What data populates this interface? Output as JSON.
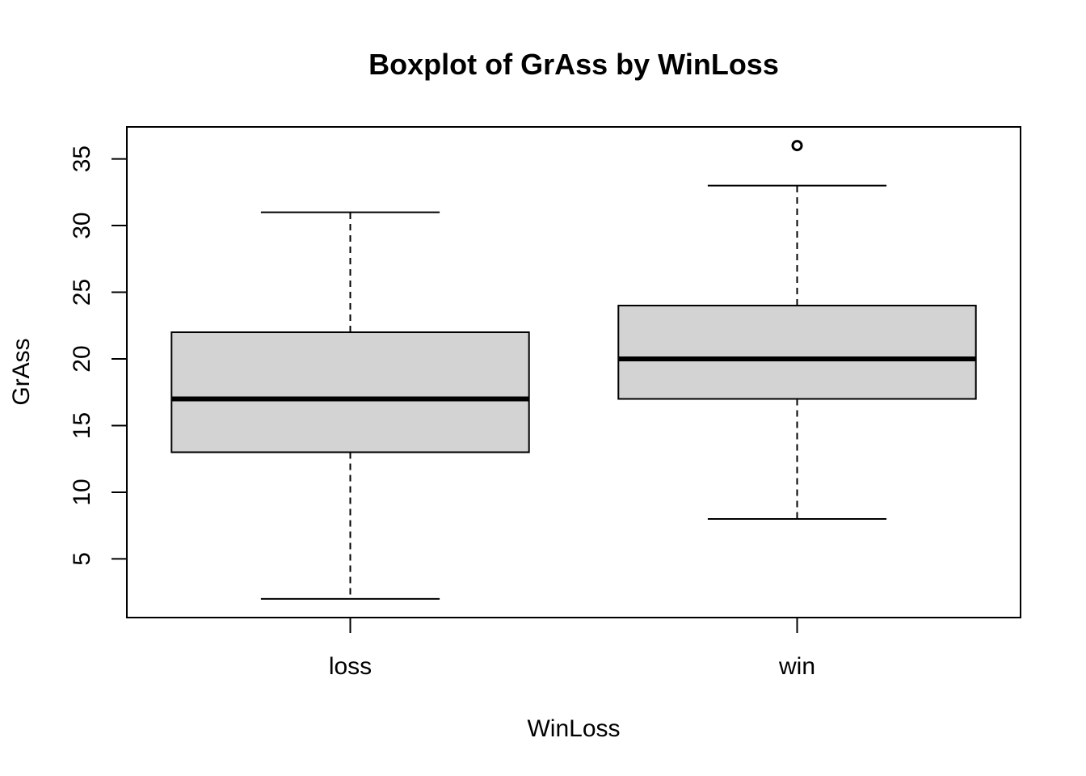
{
  "chart_data": {
    "type": "boxplot",
    "title": "Boxplot of GrAss by WinLoss",
    "xlabel": "WinLoss",
    "ylabel": "GrAss",
    "ylim": [
      0.6,
      37.4
    ],
    "yticks": [
      5,
      10,
      15,
      20,
      25,
      30,
      35
    ],
    "grid": false,
    "categories": [
      "loss",
      "win"
    ],
    "boxes": [
      {
        "category": "loss",
        "whisker_low": 2,
        "q1": 13,
        "median": 17,
        "q3": 22,
        "whisker_high": 31,
        "outliers": []
      },
      {
        "category": "win",
        "whisker_low": 8,
        "q1": 17,
        "median": 20,
        "q3": 24,
        "whisker_high": 33,
        "outliers": [
          36
        ]
      }
    ],
    "box_fill": "#d3d3d3"
  }
}
